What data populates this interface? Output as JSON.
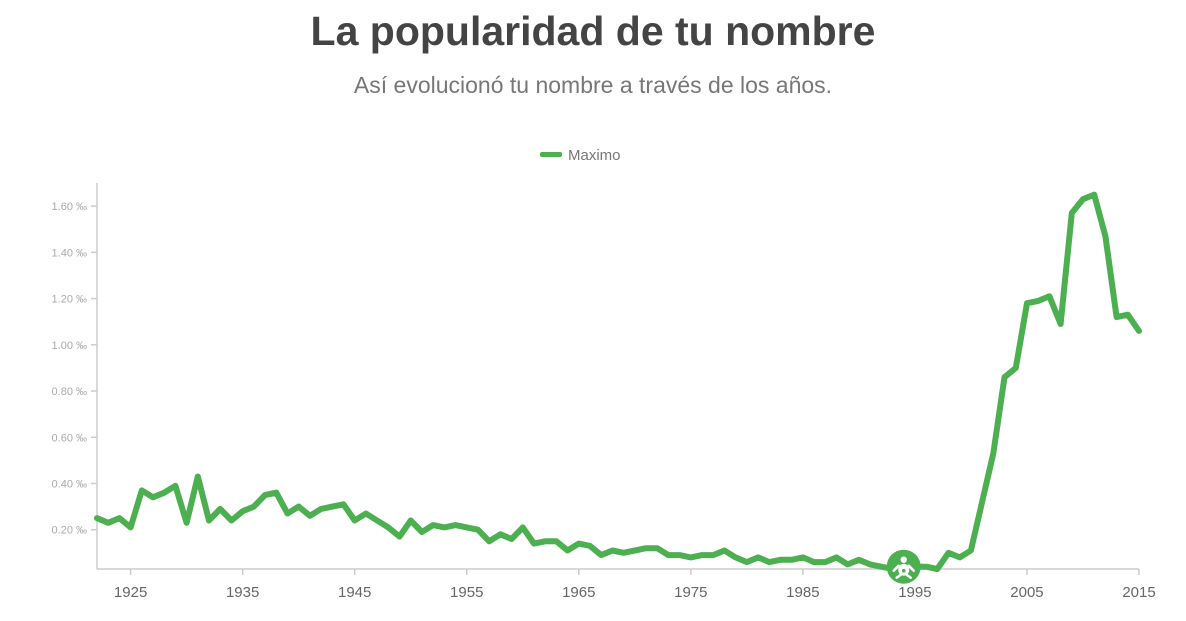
{
  "header": {
    "title": "La popularidad de tu nombre",
    "subtitle": "Así evolucionó tu nombre a través de los años."
  },
  "colors": {
    "series": "#4caf50",
    "axis": "#cccccc",
    "tick_text": "#aaaaaa",
    "x_tick_text": "#666666"
  },
  "marker_icon": "baby-icon",
  "chart_data": {
    "type": "line",
    "legend": "top-center",
    "grid": false,
    "xlim": [
      1922,
      2015
    ],
    "ylim": [
      0.03,
      1.7
    ],
    "yticks": [
      0.2,
      0.4,
      0.6,
      0.8,
      1.0,
      1.2,
      1.4,
      1.6
    ],
    "ytick_labels": [
      "0.20 ‰",
      "0.40 ‰",
      "0.60 ‰",
      "0.80 ‰",
      "1.00 ‰",
      "1.20 ‰",
      "1.40 ‰",
      "1.60 ‰"
    ],
    "xticks": [
      1925,
      1935,
      1945,
      1955,
      1965,
      1975,
      1985,
      1995,
      2005,
      2015
    ],
    "xtick_labels": [
      "1925",
      "1935",
      "1945",
      "1955",
      "1965",
      "1975",
      "1985",
      "1995",
      "2005",
      "2015"
    ],
    "marker": {
      "x": 1994,
      "y": 0.04
    },
    "series": [
      {
        "name": "Maximo",
        "x": [
          1922,
          1923,
          1924,
          1925,
          1926,
          1927,
          1928,
          1929,
          1930,
          1931,
          1932,
          1933,
          1934,
          1935,
          1936,
          1937,
          1938,
          1939,
          1940,
          1941,
          1942,
          1943,
          1944,
          1945,
          1946,
          1947,
          1948,
          1949,
          1950,
          1951,
          1952,
          1953,
          1954,
          1955,
          1956,
          1957,
          1958,
          1959,
          1960,
          1961,
          1962,
          1963,
          1964,
          1965,
          1966,
          1967,
          1968,
          1969,
          1970,
          1971,
          1972,
          1973,
          1974,
          1975,
          1976,
          1977,
          1978,
          1979,
          1980,
          1981,
          1982,
          1983,
          1984,
          1985,
          1986,
          1987,
          1988,
          1989,
          1990,
          1991,
          1992,
          1993,
          1994,
          1995,
          1996,
          1997,
          1998,
          1999,
          2000,
          2001,
          2002,
          2003,
          2004,
          2005,
          2006,
          2007,
          2008,
          2009,
          2010,
          2011,
          2012,
          2013,
          2014,
          2015
        ],
        "values": [
          0.25,
          0.23,
          0.25,
          0.21,
          0.37,
          0.34,
          0.36,
          0.39,
          0.23,
          0.43,
          0.24,
          0.29,
          0.24,
          0.28,
          0.3,
          0.35,
          0.36,
          0.27,
          0.3,
          0.26,
          0.29,
          0.3,
          0.31,
          0.24,
          0.27,
          0.24,
          0.21,
          0.17,
          0.24,
          0.19,
          0.22,
          0.21,
          0.22,
          0.21,
          0.2,
          0.15,
          0.18,
          0.16,
          0.21,
          0.14,
          0.15,
          0.15,
          0.11,
          0.14,
          0.13,
          0.09,
          0.11,
          0.1,
          0.11,
          0.12,
          0.12,
          0.09,
          0.09,
          0.08,
          0.09,
          0.09,
          0.11,
          0.08,
          0.06,
          0.08,
          0.06,
          0.07,
          0.07,
          0.08,
          0.06,
          0.06,
          0.08,
          0.05,
          0.07,
          0.05,
          0.04,
          0.03,
          0.04,
          0.04,
          0.04,
          0.03,
          0.1,
          0.08,
          0.11,
          0.32,
          0.53,
          0.86,
          0.9,
          1.18,
          1.19,
          1.21,
          1.09,
          1.57,
          1.63,
          1.65,
          1.47,
          1.12,
          1.13,
          1.06
        ]
      }
    ]
  }
}
